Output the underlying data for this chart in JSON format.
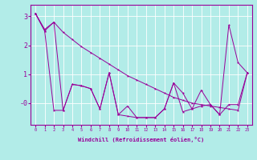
{
  "xlabel": "Windchill (Refroidissement éolien,°C)",
  "background_color": "#b2ece8",
  "line_color": "#990099",
  "x": [
    0,
    1,
    2,
    3,
    4,
    5,
    6,
    7,
    8,
    9,
    10,
    11,
    12,
    13,
    14,
    15,
    16,
    17,
    18,
    19,
    20,
    21,
    22,
    23
  ],
  "series1": [
    3.1,
    2.55,
    2.8,
    2.45,
    2.2,
    1.95,
    1.75,
    1.55,
    1.35,
    1.15,
    0.95,
    0.8,
    0.65,
    0.5,
    0.35,
    0.2,
    0.1,
    0.0,
    -0.05,
    -0.1,
    -0.15,
    -0.2,
    -0.25,
    1.05
  ],
  "series2": [
    3.1,
    2.5,
    2.8,
    -0.25,
    0.65,
    0.6,
    0.5,
    -0.2,
    1.05,
    -0.4,
    -0.1,
    -0.5,
    -0.5,
    -0.5,
    -0.2,
    0.7,
    0.35,
    -0.2,
    -0.1,
    -0.05,
    -0.4,
    2.7,
    1.4,
    1.05
  ],
  "series3": [
    3.1,
    2.5,
    -0.25,
    -0.25,
    0.65,
    0.6,
    0.5,
    -0.2,
    1.05,
    -0.4,
    -0.45,
    -0.5,
    -0.5,
    -0.5,
    -0.2,
    0.7,
    -0.3,
    -0.2,
    0.45,
    -0.05,
    -0.4,
    -0.05,
    -0.05,
    1.05
  ],
  "ylim": [
    -0.75,
    3.4
  ],
  "xlim": [
    -0.5,
    23.5
  ],
  "yticks": [
    0,
    1,
    2,
    3
  ],
  "ytick_labels": [
    "-0",
    "1",
    "2",
    "3"
  ]
}
